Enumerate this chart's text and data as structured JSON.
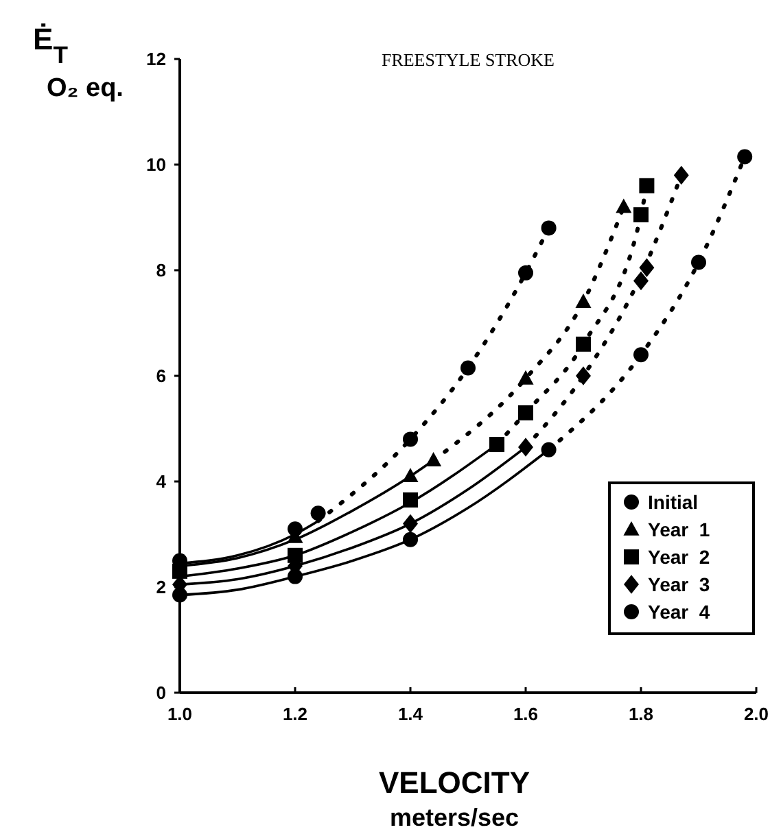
{
  "chart_data": {
    "type": "scatter",
    "title": "FREESTYLE STROKE",
    "xlabel": "VELOCITY\nmeters/sec",
    "ylabel": "Ė$_{T}$\nO₂ eq.",
    "xlim": [
      1.0,
      2.0
    ],
    "xticks": [
      {
        "value": 1.0,
        "label": "1.0"
      },
      {
        "value": 1.2,
        "label": "1.2"
      },
      {
        "value": 1.4,
        "label": "1.4"
      },
      {
        "value": 1.6,
        "label": "1.6"
      },
      {
        "value": 1.8,
        "label": "1.8"
      },
      {
        "value": 2.0,
        "label": "2.0"
      }
    ],
    "ylim": [
      0,
      12
    ],
    "yticks": [
      0,
      2,
      4,
      6,
      8,
      10,
      12
    ],
    "grid": false,
    "legend": "bottom right",
    "series": [
      {
        "name": "Initial",
        "type": "scatter",
        "marker": "circle",
        "color": "#000000",
        "x": [
          1.0,
          1.2,
          1.24,
          1.4,
          1.5,
          1.6,
          1.64
        ],
        "values": [
          2.5,
          3.1,
          3.4,
          4.8,
          6.15,
          7.95,
          8.8
        ]
      },
      {
        "name": "Year  1",
        "type": "scatter",
        "marker": "triangle",
        "color": "#000000",
        "x": [
          1.2,
          1.4,
          1.44,
          1.6,
          1.7,
          1.77
        ],
        "values": [
          2.95,
          4.1,
          4.4,
          5.95,
          7.4,
          9.2
        ]
      },
      {
        "name": "Year  2",
        "type": "scatter",
        "marker": "square",
        "color": "#000000",
        "x": [
          1.0,
          1.2,
          1.4,
          1.55,
          1.6,
          1.7,
          1.8,
          1.81
        ],
        "values": [
          2.3,
          2.6,
          3.65,
          4.7,
          5.3,
          6.6,
          9.05,
          9.6
        ]
      },
      {
        "name": "Year  3",
        "type": "scatter",
        "marker": "diamond",
        "color": "#000000",
        "x": [
          1.0,
          1.2,
          1.4,
          1.6,
          1.7,
          1.8,
          1.81,
          1.87
        ],
        "values": [
          2.05,
          2.4,
          3.2,
          4.65,
          6.0,
          7.8,
          8.05,
          9.8
        ]
      },
      {
        "name": "Year  4",
        "type": "scatter",
        "marker": "circle",
        "color": "#000000",
        "x": [
          1.0,
          1.2,
          1.4,
          1.64,
          1.8,
          1.9,
          1.98
        ],
        "values": [
          1.85,
          2.2,
          2.9,
          4.6,
          6.4,
          8.15,
          10.15
        ]
      },
      {
        "type": "line",
        "line_style": "solid",
        "color": "#000000",
        "x": [
          1.0,
          1.1,
          1.2,
          1.24
        ],
        "values": [
          2.45,
          2.6,
          3.0,
          3.25
        ]
      },
      {
        "type": "line",
        "line_style": "dotted",
        "color": "#000000",
        "x": [
          1.24,
          1.4,
          1.5,
          1.6,
          1.64
        ],
        "values": [
          3.25,
          4.8,
          6.15,
          7.95,
          8.8
        ]
      },
      {
        "type": "line",
        "line_style": "solid",
        "color": "#000000",
        "x": [
          1.0,
          1.1,
          1.2,
          1.3,
          1.4,
          1.44
        ],
        "values": [
          2.4,
          2.55,
          2.9,
          3.45,
          4.1,
          4.4
        ]
      },
      {
        "type": "line",
        "line_style": "dotted",
        "color": "#000000",
        "x": [
          1.44,
          1.6,
          1.7,
          1.77
        ],
        "values": [
          4.4,
          5.95,
          7.4,
          9.2
        ]
      },
      {
        "type": "line",
        "line_style": "solid",
        "color": "#000000",
        "x": [
          1.0,
          1.1,
          1.2,
          1.3,
          1.4,
          1.55
        ],
        "values": [
          2.2,
          2.35,
          2.6,
          3.05,
          3.6,
          4.7
        ]
      },
      {
        "type": "line",
        "line_style": "dotted",
        "color": "#000000",
        "x": [
          1.55,
          1.6,
          1.7,
          1.8,
          1.81
        ],
        "values": [
          4.7,
          5.3,
          6.6,
          9.05,
          9.6
        ]
      },
      {
        "type": "line",
        "line_style": "solid",
        "color": "#000000",
        "x": [
          1.0,
          1.1,
          1.2,
          1.3,
          1.4,
          1.5,
          1.6
        ],
        "values": [
          2.05,
          2.15,
          2.4,
          2.75,
          3.2,
          3.85,
          4.65
        ]
      },
      {
        "type": "line",
        "line_style": "dotted",
        "color": "#000000",
        "x": [
          1.6,
          1.7,
          1.8,
          1.87
        ],
        "values": [
          4.65,
          6.0,
          7.9,
          9.8
        ]
      },
      {
        "type": "line",
        "line_style": "solid",
        "color": "#000000",
        "x": [
          1.0,
          1.1,
          1.2,
          1.3,
          1.4,
          1.5,
          1.64
        ],
        "values": [
          1.85,
          1.95,
          2.2,
          2.5,
          2.9,
          3.5,
          4.6
        ]
      },
      {
        "type": "line",
        "line_style": "dotted",
        "color": "#000000",
        "x": [
          1.64,
          1.8,
          1.9,
          1.98
        ],
        "values": [
          4.6,
          6.4,
          8.15,
          10.15
        ]
      }
    ]
  }
}
